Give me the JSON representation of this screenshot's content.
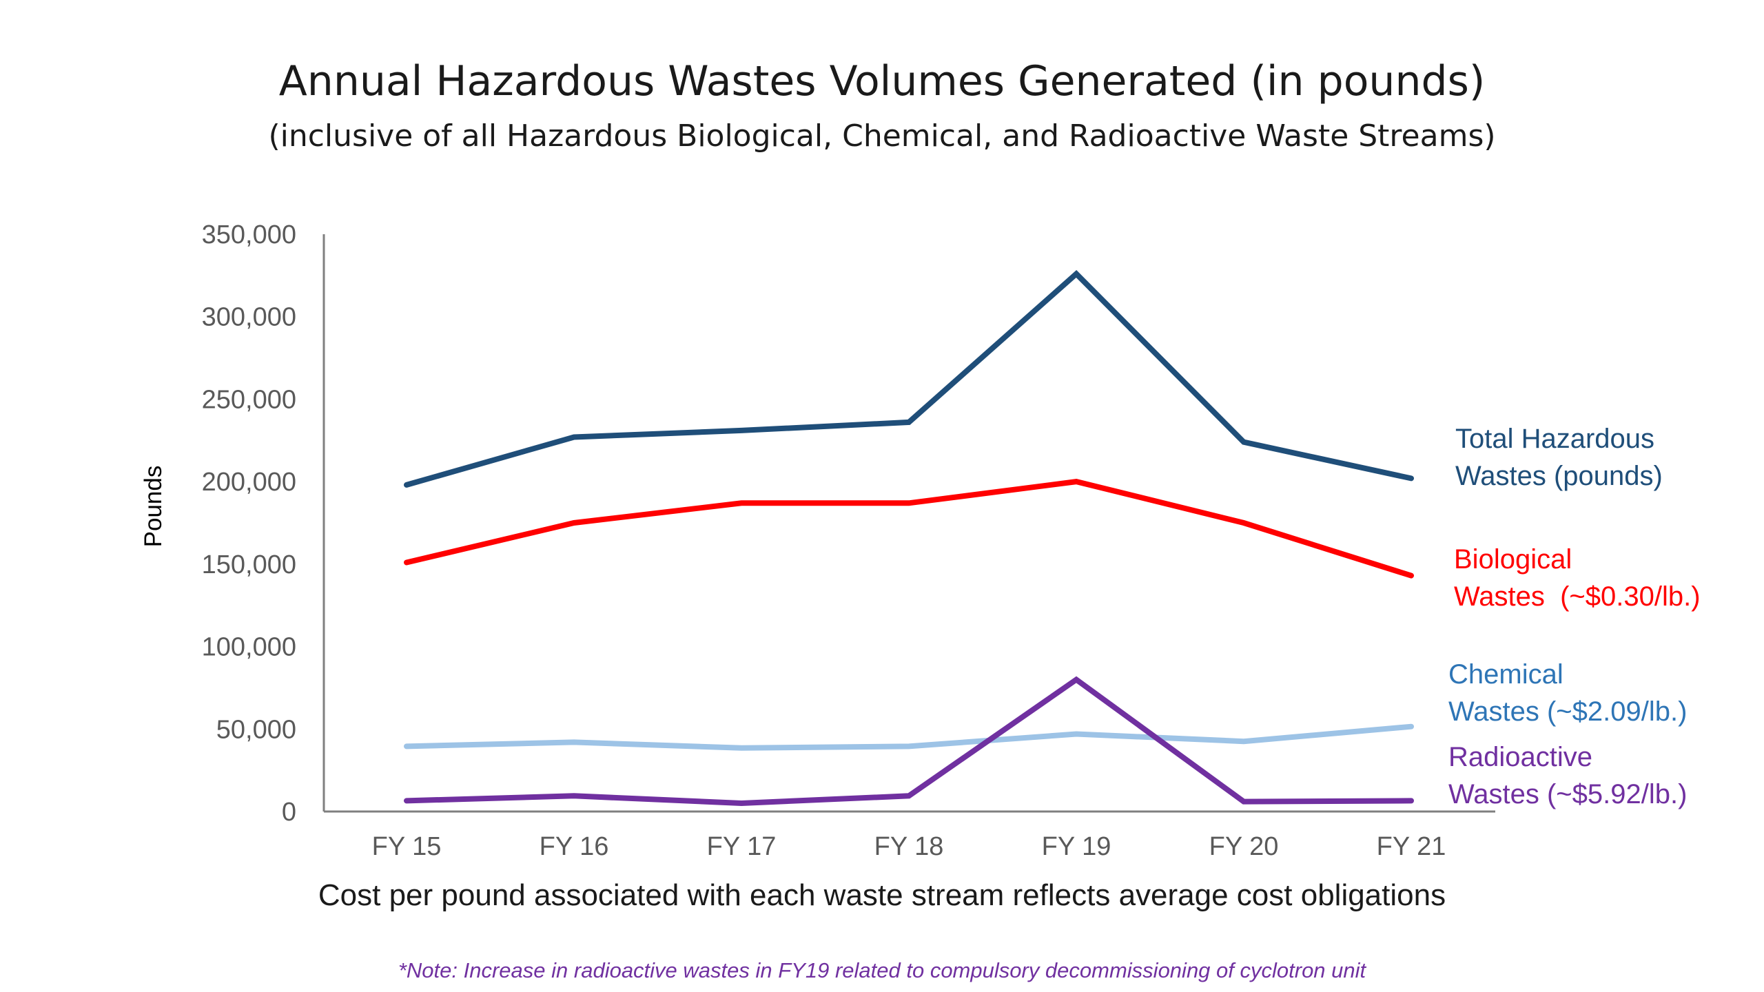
{
  "chart_data": {
    "type": "line",
    "title": "Annual Hazardous Wastes Volumes Generated (in pounds)",
    "subtitle": "(inclusive of all Hazardous Biological, Chemical, and Radioactive Waste Streams)",
    "ylabel": "Pounds",
    "xlabel": "",
    "caption": "Cost per pound associated with each waste stream reflects average cost obligations",
    "note": "*Note: Increase in radioactive wastes in FY19 related to compulsory decommissioning of cyclotron unit",
    "categories": [
      "FY 15",
      "FY 16",
      "FY 17",
      "FY 18",
      "FY 19",
      "FY 20",
      "FY 21"
    ],
    "ylim": [
      0,
      350000
    ],
    "yticks": [
      0,
      50000,
      100000,
      150000,
      200000,
      250000,
      300000,
      350000
    ],
    "ytick_labels": [
      "0",
      "50,000",
      "100,000",
      "150,000",
      "200,000",
      "250,000",
      "300,000",
      "350,000"
    ],
    "grid": false,
    "series": [
      {
        "label_lines": [
          "Total Hazardous",
          "Wastes (pounds)"
        ],
        "color": "#1f4e79",
        "values": [
          198000,
          227000,
          231000,
          236000,
          326000,
          224000,
          202000
        ]
      },
      {
        "label_lines": [
          "Biological",
          "Wastes  (~$0.30/lb.)"
        ],
        "color": "#ff0000",
        "values": [
          151000,
          175000,
          187000,
          187000,
          200000,
          175000,
          143000
        ]
      },
      {
        "label_lines": [
          "Chemical",
          "Wastes (~$2.09/lb.)"
        ],
        "color": "#9dc3e6",
        "values": [
          39500,
          42000,
          38500,
          39500,
          47000,
          42500,
          51500
        ]
      },
      {
        "label_lines": [
          "Radioactive",
          "Wastes (~$5.92/lb.)"
        ],
        "color": "#7030a0",
        "values": [
          6500,
          9500,
          5000,
          9500,
          80000,
          6000,
          6500
        ]
      }
    ],
    "series_label_colors": [
      "#1f4e79",
      "#ff0000",
      "#2e75b6",
      "#7030a0"
    ],
    "note_color": "#7030a0",
    "axis_color": "#7f7f7f",
    "tick_color": "#595959"
  }
}
